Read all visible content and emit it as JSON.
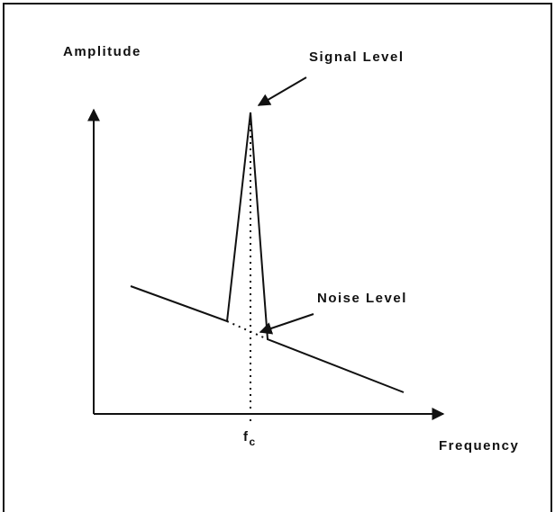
{
  "labels": {
    "y_axis": "Amplitude",
    "x_axis": "Frequency",
    "signal": "Signal Level",
    "noise": "Noise Level",
    "center": {
      "text": "f",
      "subscript": "c"
    }
  }
}
